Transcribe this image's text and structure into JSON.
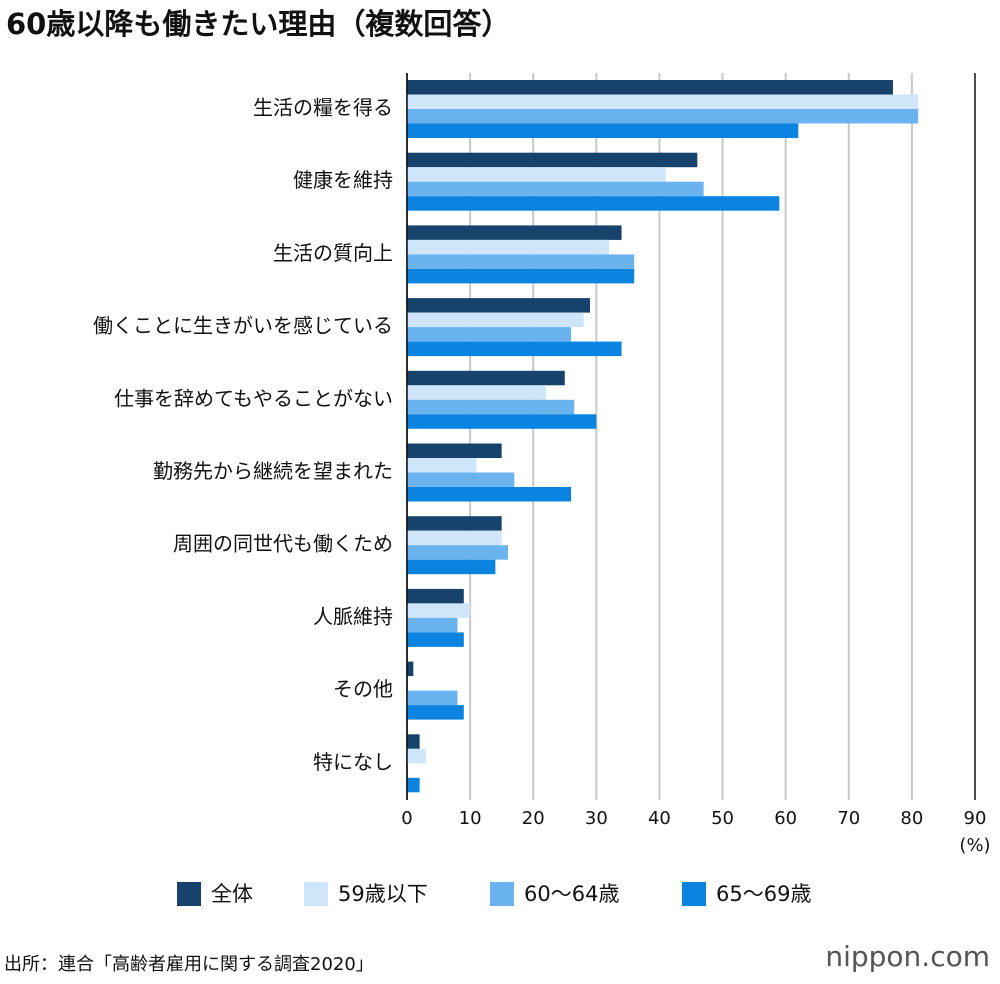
{
  "chart_data": {
    "type": "bar",
    "orientation": "horizontal",
    "title": "60歳以降も働きたい理由（複数回答）",
    "categories": [
      "生活の糧を得る",
      "健康を維持",
      "生活の質向上",
      "働くことに生きがいを感じている",
      "仕事を辞めてもやることがない",
      "勤務先から継続を望まれた",
      "周囲の同世代も働くため",
      "人脈維持",
      "その他",
      "特になし"
    ],
    "series": [
      {
        "name": "全体",
        "color": "#16426b",
        "values": [
          77,
          46,
          34,
          29,
          25,
          15,
          15,
          9,
          1,
          2
        ]
      },
      {
        "name": "59歳以下",
        "color": "#cfe6fa",
        "values": [
          81,
          41,
          32,
          28,
          22,
          11,
          15,
          10,
          0,
          3
        ]
      },
      {
        "name": "60〜64歳",
        "color": "#6bb3ef",
        "values": [
          81,
          47,
          36,
          26,
          26.5,
          17,
          16,
          8,
          8,
          0
        ]
      },
      {
        "name": "65〜69歳",
        "color": "#0a84e0",
        "values": [
          62,
          59,
          36,
          34,
          30,
          26,
          14,
          9,
          9,
          2
        ]
      }
    ],
    "xlim": [
      0,
      90
    ],
    "xticks": [
      0,
      10,
      20,
      30,
      40,
      50,
      60,
      70,
      80,
      90
    ],
    "xlabel": "(%)",
    "grid": true,
    "source": "出所：連合「高齢者雇用に関する調査2020」",
    "logo": "nippon.com"
  }
}
